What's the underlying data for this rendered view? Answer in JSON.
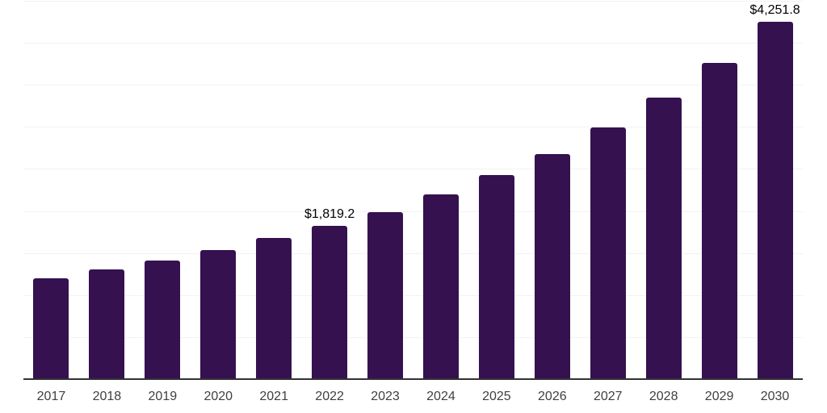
{
  "chart_data": {
    "type": "bar",
    "title": "",
    "xlabel": "",
    "ylabel": "",
    "categories": [
      "2017",
      "2018",
      "2019",
      "2020",
      "2021",
      "2022",
      "2023",
      "2024",
      "2025",
      "2026",
      "2027",
      "2028",
      "2029",
      "2030"
    ],
    "values": [
      1200,
      1304,
      1410,
      1535,
      1679,
      1819.2,
      1986,
      2198,
      2428,
      2677,
      2994,
      3349,
      3761,
      4251.8
    ],
    "data_labels": [
      {
        "category": "2022",
        "text": "$1,819.2"
      },
      {
        "category": "2030",
        "text": "$4,251.8"
      }
    ],
    "ylim": [
      0,
      4500
    ],
    "grid_step": 500,
    "grid": "horizontal-only",
    "legend_position": "none",
    "y_axis_tick_labels": "hidden",
    "colors": {
      "bar": "#351150",
      "gridline": "#f2f2f2",
      "axis_line": "#333333",
      "x_tick_label": "#404040",
      "data_label": "#000000",
      "background": "#ffffff"
    }
  }
}
